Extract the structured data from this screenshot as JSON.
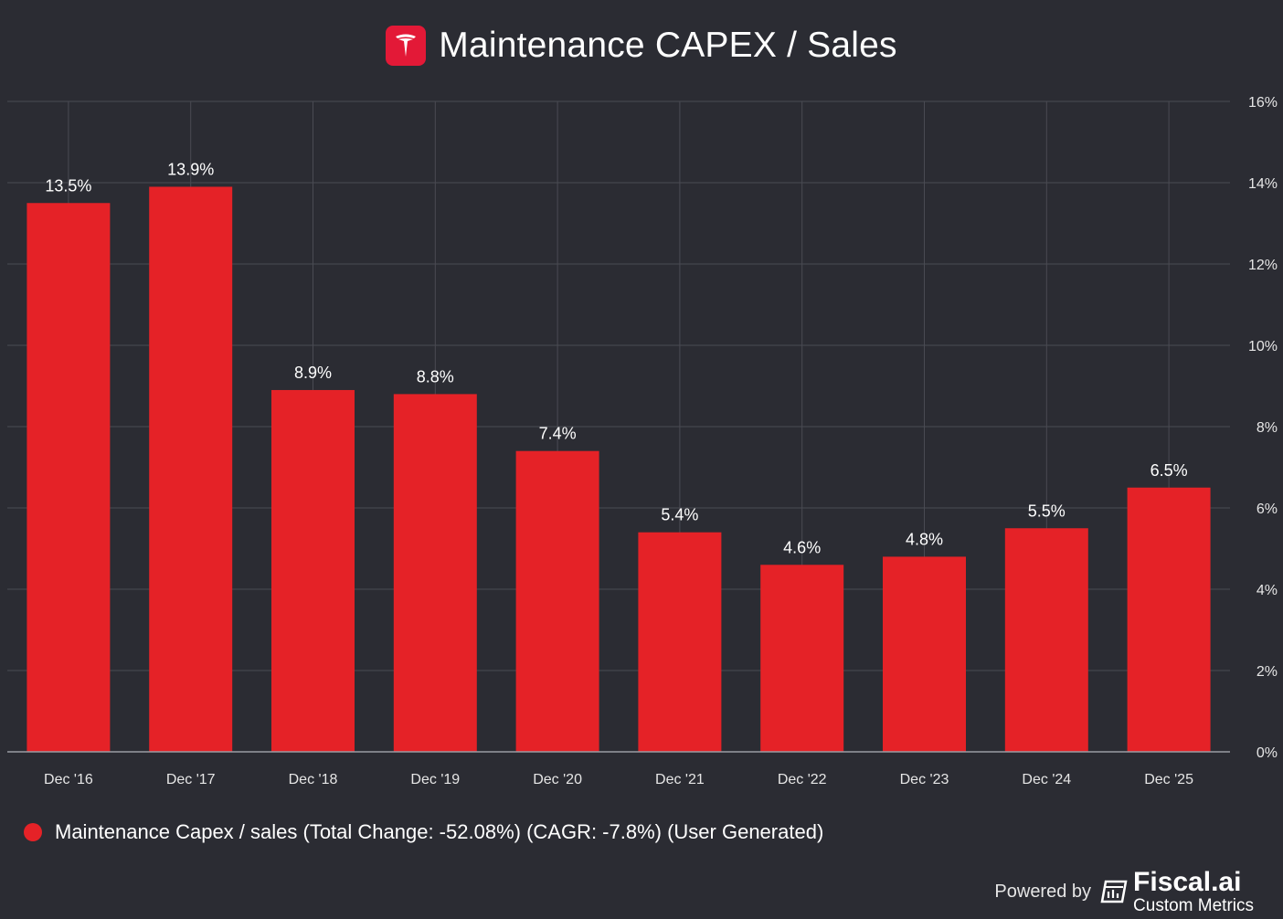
{
  "header": {
    "title": "Maintenance CAPEX / Sales",
    "logo_icon": "tesla-logo-icon"
  },
  "colors": {
    "background": "#2b2c33",
    "bar": "#e52227",
    "grid": "#4a4b53",
    "axis": "#9a9ba3",
    "logo_bg": "#e31937"
  },
  "chart_data": {
    "type": "bar",
    "title": "Maintenance CAPEX / Sales",
    "categories": [
      "Dec '16",
      "Dec '17",
      "Dec '18",
      "Dec '19",
      "Dec '20",
      "Dec '21",
      "Dec '22",
      "Dec '23",
      "Dec '24",
      "Dec '25"
    ],
    "series": [
      {
        "name": "Maintenance Capex / sales",
        "values": [
          13.5,
          13.9,
          8.9,
          8.8,
          7.4,
          5.4,
          4.6,
          4.8,
          5.5,
          6.5
        ],
        "labels": [
          "13.5%",
          "13.9%",
          "8.9%",
          "8.8%",
          "7.4%",
          "5.4%",
          "4.6%",
          "4.8%",
          "5.5%",
          "6.5%"
        ]
      }
    ],
    "ylim": [
      0,
      16
    ],
    "yticks": [
      0,
      2,
      4,
      6,
      8,
      10,
      12,
      14,
      16
    ],
    "ytick_labels": [
      "0%",
      "2%",
      "4%",
      "6%",
      "8%",
      "10%",
      "12%",
      "14%",
      "16%"
    ],
    "y_axis_side": "right",
    "grid": true,
    "xlabel": "",
    "ylabel": ""
  },
  "legend": {
    "text": "Maintenance Capex / sales (Total Change: -52.08%) (CAGR: -7.8%) (User Generated)"
  },
  "footer": {
    "powered_by": "Powered by",
    "brand": "Fiscal.ai",
    "sub": "Custom Metrics",
    "brand_icon": "fiscal-logo-icon"
  }
}
